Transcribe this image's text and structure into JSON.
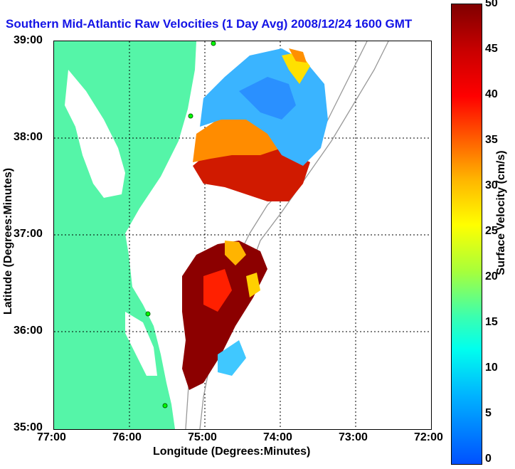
{
  "title": "Southern Mid-Atlantic Raw Velocities (1 Day Avg) 2008/12/24 1600 GMT",
  "xlabel": "Longitude (Degrees:Minutes)",
  "ylabel": "Latitude (Degrees:Minutes)",
  "colorbar": {
    "label": "Surface Velocity (cm/s)",
    "ticks": [
      "50",
      "45",
      "40",
      "35",
      "30",
      "25",
      "20",
      "15",
      "10",
      "5",
      "0"
    ]
  },
  "xticks": [
    "77:00",
    "76:00",
    "75:00",
    "74:00",
    "73:00",
    "72:00"
  ],
  "yticks": [
    "39:00",
    "38:00",
    "37:00",
    "36:00",
    "35:00"
  ],
  "colors": {
    "land": "#55f5a8",
    "title": "#1414e6",
    "grid": "#000000"
  }
}
